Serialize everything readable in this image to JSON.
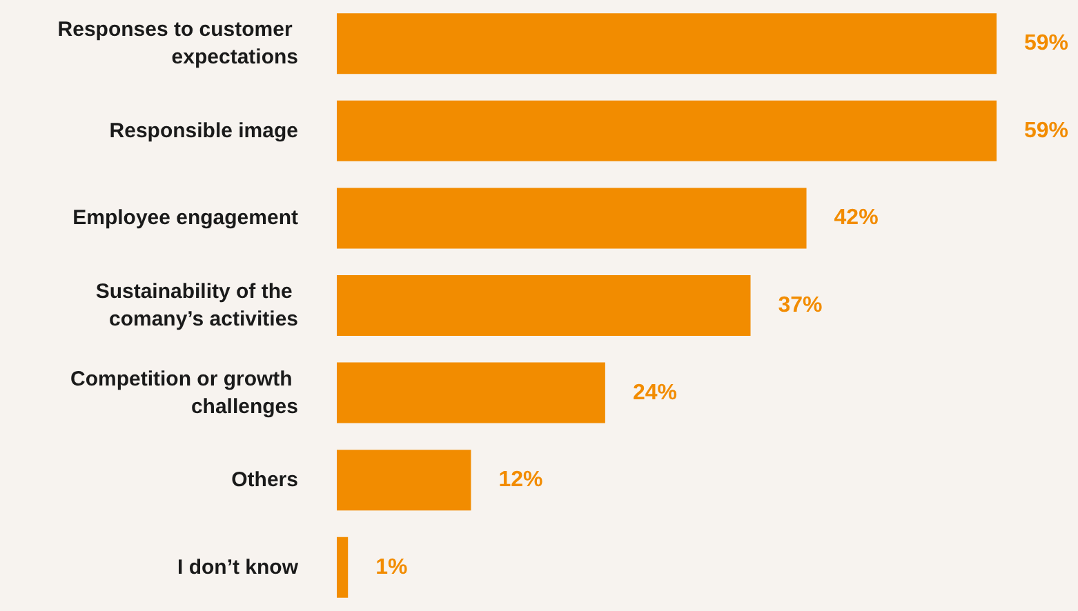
{
  "chart_data": {
    "type": "bar",
    "orientation": "horizontal",
    "categories": [
      "Responses to customer expectations",
      "Responsible image",
      "Employee engagement",
      "Sustainability of the comany’s activities",
      "Competition or growth challenges",
      "Others",
      "I don’t know"
    ],
    "values": [
      59,
      59,
      42,
      37,
      24,
      12,
      1
    ],
    "color": "#f28c00",
    "value_labels": [
      "59%",
      "59%",
      "42%",
      "37%",
      "24%",
      "12%",
      "1%"
    ]
  }
}
